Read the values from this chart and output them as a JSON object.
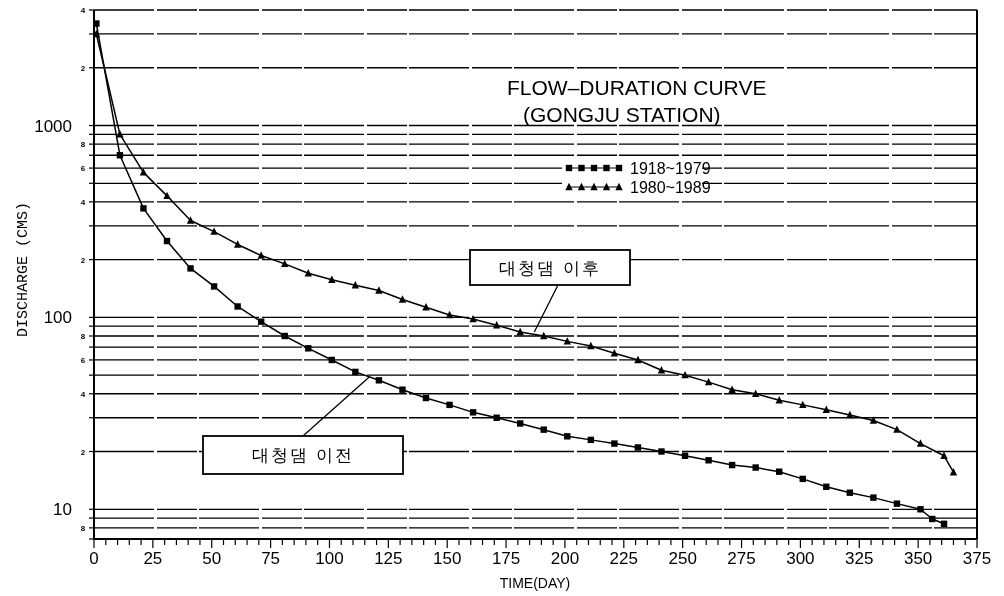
{
  "chart_data": {
    "type": "line",
    "title": "FLOW–DURATION CURVE",
    "subtitle": "(GONGJU STATION)",
    "xlabel": "TIME(DAY)",
    "ylabel": "DISCHARGE (CMS)",
    "log": "y",
    "grid": "y",
    "legend": "top right",
    "xlim": [
      0,
      375
    ],
    "ylim": [
      7,
      4000
    ],
    "xticks": [
      0,
      {
        "value": 5,
        "label": null
      },
      {
        "value": 10,
        "label": null
      },
      {
        "value": 15,
        "label": null
      },
      {
        "value": 20,
        "label": null
      },
      25,
      {
        "value": 30,
        "label": null
      },
      {
        "value": 35,
        "label": null
      },
      {
        "value": 40,
        "label": null
      },
      {
        "value": 45,
        "label": null
      },
      50,
      {
        "value": 55,
        "label": null
      },
      {
        "value": 60,
        "label": null
      },
      {
        "value": 65,
        "label": null
      },
      {
        "value": 70,
        "label": null
      },
      75,
      {
        "value": 80,
        "label": null
      },
      {
        "value": 85,
        "label": null
      },
      {
        "value": 90,
        "label": null
      },
      {
        "value": 95,
        "label": null
      },
      100,
      {
        "value": 105,
        "label": null
      },
      {
        "value": 110,
        "label": null
      },
      {
        "value": 115,
        "label": null
      },
      {
        "value": 120,
        "label": null
      },
      125,
      {
        "value": 130,
        "label": null
      },
      {
        "value": 135,
        "label": null
      },
      {
        "value": 140,
        "label": null
      },
      {
        "value": 145,
        "label": null
      },
      150,
      {
        "value": 155,
        "label": null
      },
      {
        "value": 160,
        "label": null
      },
      {
        "value": 165,
        "label": null
      },
      {
        "value": 170,
        "label": null
      },
      175,
      {
        "value": 180,
        "label": null
      },
      {
        "value": 185,
        "label": null
      },
      {
        "value": 190,
        "label": null
      },
      {
        "value": 195,
        "label": null
      },
      200,
      {
        "value": 205,
        "label": null
      },
      {
        "value": 210,
        "label": null
      },
      {
        "value": 215,
        "label": null
      },
      {
        "value": 220,
        "label": null
      },
      225,
      {
        "value": 230,
        "label": null
      },
      {
        "value": 235,
        "label": null
      },
      {
        "value": 240,
        "label": null
      },
      {
        "value": 245,
        "label": null
      },
      250,
      {
        "value": 255,
        "label": null
      },
      {
        "value": 260,
        "label": null
      },
      {
        "value": 265,
        "label": null
      },
      {
        "value": 270,
        "label": null
      },
      275,
      {
        "value": 280,
        "label": null
      },
      {
        "value": 285,
        "label": null
      },
      {
        "value": 290,
        "label": null
      },
      {
        "value": 295,
        "label": null
      },
      300,
      {
        "value": 305,
        "label": null
      },
      {
        "value": 310,
        "label": null
      },
      {
        "value": 315,
        "label": null
      },
      {
        "value": 320,
        "label": null
      },
      325,
      {
        "value": 330,
        "label": null
      },
      {
        "value": 335,
        "label": null
      },
      {
        "value": 340,
        "label": null
      },
      {
        "value": 345,
        "label": null
      },
      350,
      {
        "value": 355,
        "label": null
      },
      {
        "value": 360,
        "label": null
      },
      {
        "value": 365,
        "label": null
      },
      {
        "value": 370,
        "label": null
      },
      375
    ],
    "yticks": [
      {
        "value": 4000,
        "label": null
      },
      {
        "value": 3000,
        "label": null
      },
      {
        "value": 2000,
        "label": null
      },
      1000,
      {
        "value": 900,
        "label": null
      },
      {
        "value": 800,
        "label": null
      },
      {
        "value": 700,
        "label": null
      },
      {
        "value": 600,
        "label": null
      },
      {
        "value": 500,
        "label": null
      },
      {
        "value": 400,
        "label": null
      },
      {
        "value": 300,
        "label": null
      },
      {
        "value": 200,
        "label": null
      },
      100,
      {
        "value": 90,
        "label": null
      },
      {
        "value": 80,
        "label": null
      },
      {
        "value": 70,
        "label": null
      },
      {
        "value": 60,
        "label": null
      },
      {
        "value": 50,
        "label": null
      },
      {
        "value": 40,
        "label": null
      },
      {
        "value": 30,
        "label": null
      },
      {
        "value": 20,
        "label": null
      },
      10,
      {
        "value": 9,
        "label": null
      },
      {
        "value": 8,
        "label": null
      },
      {
        "value": 7,
        "label": null
      }
    ],
    "series": [
      {
        "name": "1918~1979",
        "color": "#000000",
        "marker": "square",
        "x": [
          1,
          11,
          21,
          31,
          41,
          51,
          61,
          71,
          81,
          91,
          101,
          111,
          121,
          131,
          141,
          151,
          161,
          171,
          181,
          191,
          201,
          211,
          221,
          231,
          241,
          251,
          261,
          271,
          281,
          291,
          301,
          311,
          321,
          331,
          341,
          351,
          356,
          361
        ],
        "values": [
          3400,
          700,
          370,
          250,
          180,
          145,
          114,
          95,
          80,
          69,
          60,
          52,
          47,
          42,
          38,
          35,
          32,
          30,
          28,
          26,
          24,
          23,
          22,
          21,
          20,
          19,
          18,
          17,
          16.5,
          15.7,
          14.4,
          13.1,
          12.2,
          11.5,
          10.7,
          10,
          8.9,
          8.4
        ]
      },
      {
        "name": "1980~1989",
        "color": "#000000",
        "marker": "triangle",
        "x": [
          1,
          11,
          21,
          31,
          41,
          51,
          61,
          71,
          81,
          91,
          101,
          111,
          121,
          131,
          141,
          151,
          161,
          171,
          181,
          191,
          201,
          211,
          221,
          231,
          241,
          251,
          261,
          271,
          281,
          291,
          301,
          311,
          321,
          331,
          341,
          351,
          361,
          365
        ],
        "values": [
          3000,
          900,
          570,
          430,
          320,
          280,
          240,
          210,
          190,
          170,
          157,
          147,
          138,
          124,
          113,
          103,
          98,
          91,
          84,
          80,
          75,
          71,
          65,
          60,
          53,
          50,
          46,
          42,
          40,
          37,
          35,
          33,
          31,
          29,
          26,
          22,
          19,
          15.6
        ]
      }
    ],
    "annotations": [
      {
        "text": "대청댐 이후",
        "x": 187,
        "y": 84
      },
      {
        "text": "대청댐 이전",
        "x": 117,
        "y": 49
      },
      "4",
      "2",
      "8",
      "6",
      "4",
      "2",
      "8",
      "6",
      "4",
      "2",
      "8"
    ]
  }
}
